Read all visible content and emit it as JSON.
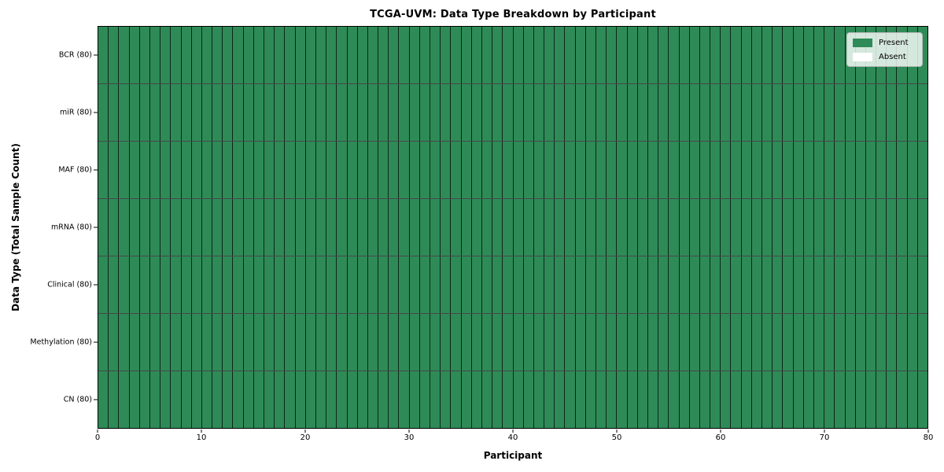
{
  "title": "TCGA-UVM: Data Type Breakdown by Participant",
  "axes": {
    "x_label": "Participant",
    "y_label": "Data Type (Total Sample Count)",
    "x_ticks": [
      0,
      10,
      20,
      30,
      40,
      50,
      60,
      70,
      80
    ],
    "x_range": [
      0,
      80
    ]
  },
  "legend": {
    "items": [
      {
        "name": "present",
        "label": "Present",
        "color": "#2e8b57"
      },
      {
        "name": "absent",
        "label": "Absent",
        "color": "#ffffff"
      }
    ],
    "position": "upper right"
  },
  "colors": {
    "present": "#2e8b57",
    "absent": "#ffffff",
    "cell_border": "rgba(0,0,0,0.72)",
    "frame": "#000000",
    "background": "#ffffff"
  },
  "chart_data": {
    "type": "heatmap",
    "title": "TCGA-UVM: Data Type Breakdown by Participant",
    "xlabel": "Participant",
    "ylabel": "Data Type (Total Sample Count)",
    "x_range": [
      0,
      80
    ],
    "n_participants": 80,
    "value_encoding": {
      "1": "Present",
      "0": "Absent"
    },
    "all_cells_present": true,
    "rows": [
      {
        "label": "BCR (80)",
        "data_type": "BCR",
        "total_samples": 80,
        "present_count": 80,
        "absent_count": 0
      },
      {
        "label": "miR (80)",
        "data_type": "miR",
        "total_samples": 80,
        "present_count": 80,
        "absent_count": 0
      },
      {
        "label": "MAF (80)",
        "data_type": "MAF",
        "total_samples": 80,
        "present_count": 80,
        "absent_count": 0
      },
      {
        "label": "mRNA (80)",
        "data_type": "mRNA",
        "total_samples": 80,
        "present_count": 80,
        "absent_count": 0
      },
      {
        "label": "Clinical (80)",
        "data_type": "Clinical",
        "total_samples": 80,
        "present_count": 80,
        "absent_count": 0
      },
      {
        "label": "Methylation (80)",
        "data_type": "Methylation",
        "total_samples": 80,
        "present_count": 80,
        "absent_count": 0
      },
      {
        "label": "CN (80)",
        "data_type": "CN",
        "total_samples": 80,
        "present_count": 80,
        "absent_count": 0
      }
    ],
    "legend_entries": [
      "Present",
      "Absent"
    ],
    "legend_position": "upper right",
    "grid": "cell-borders"
  }
}
